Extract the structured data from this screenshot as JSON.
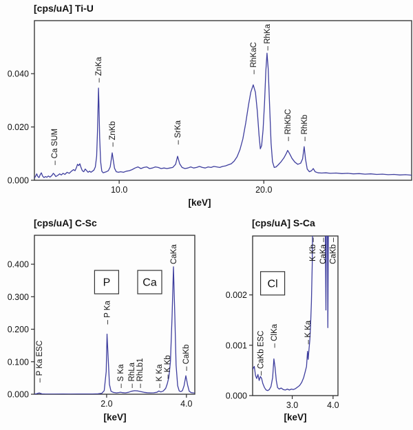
{
  "colors": {
    "curve": "#3e3e9e",
    "axis": "#2b2b2b",
    "text": "#111111",
    "background": "#fdfdfd"
  },
  "chart_data": [
    {
      "id": "ti-u",
      "type": "line",
      "title": "[cps/uA] Ti-U",
      "xlabel": "[keV]",
      "ylabel": "cps/uA",
      "xlim": [
        4.14,
        30.22
      ],
      "ylim": [
        0,
        0.0599
      ],
      "grid": false,
      "x_ticks": [
        {
          "v": 10.0,
          "label": "10.0"
        },
        {
          "v": 20.0,
          "label": "20.0"
        }
      ],
      "y_ticks": [
        {
          "v": 0.0,
          "label": "0.000"
        },
        {
          "v": 0.02,
          "label": "0.020"
        },
        {
          "v": 0.04,
          "label": "0.040"
        }
      ],
      "peaks": [
        {
          "label": "Ca SUM",
          "x": 5.52,
          "y": 0.0057,
          "dash": "below"
        },
        {
          "label": "ZnKa",
          "x": 8.57,
          "y": 0.0367,
          "dash": "below"
        },
        {
          "label": "ZnKb",
          "x": 9.52,
          "y": 0.0126,
          "dash": "below"
        },
        {
          "label": "SrKa",
          "x": 14.04,
          "y": 0.0134,
          "dash": "below"
        },
        {
          "label": "RhKaC",
          "x": 19.27,
          "y": 0.0398,
          "dash": "below"
        },
        {
          "label": "RhKa",
          "x": 20.22,
          "y": 0.0487,
          "dash": "below"
        },
        {
          "label": "RhKbC",
          "x": 21.65,
          "y": 0.0147,
          "dash": "below"
        },
        {
          "label": "RhKb",
          "x": 22.79,
          "y": 0.0147,
          "dash": "below"
        }
      ],
      "boxes": [],
      "curve": [
        [
          4.14,
          0.0008
        ],
        [
          4.22,
          0.0015
        ],
        [
          4.3,
          0.0024
        ],
        [
          4.38,
          0.0014
        ],
        [
          4.46,
          0.001
        ],
        [
          4.55,
          0.0022
        ],
        [
          4.62,
          0.0028
        ],
        [
          4.7,
          0.0016
        ],
        [
          4.8,
          0.001
        ],
        [
          4.9,
          0.0014
        ],
        [
          5.0,
          0.0011
        ],
        [
          5.1,
          0.0016
        ],
        [
          5.22,
          0.0012
        ],
        [
          5.35,
          0.0018
        ],
        [
          5.45,
          0.0026
        ],
        [
          5.52,
          0.0022
        ],
        [
          5.62,
          0.0014
        ],
        [
          5.75,
          0.0018
        ],
        [
          5.88,
          0.0024
        ],
        [
          6.0,
          0.002
        ],
        [
          6.12,
          0.0026
        ],
        [
          6.25,
          0.0022
        ],
        [
          6.4,
          0.003
        ],
        [
          6.55,
          0.0026
        ],
        [
          6.7,
          0.0034
        ],
        [
          6.85,
          0.004
        ],
        [
          6.95,
          0.0036
        ],
        [
          7.05,
          0.0048
        ],
        [
          7.12,
          0.006
        ],
        [
          7.2,
          0.0055
        ],
        [
          7.28,
          0.0062
        ],
        [
          7.35,
          0.005
        ],
        [
          7.45,
          0.0036
        ],
        [
          7.55,
          0.0032
        ],
        [
          7.65,
          0.0042
        ],
        [
          7.75,
          0.0036
        ],
        [
          7.85,
          0.003
        ],
        [
          7.95,
          0.0034
        ],
        [
          8.05,
          0.003
        ],
        [
          8.15,
          0.0034
        ],
        [
          8.25,
          0.0038
        ],
        [
          8.35,
          0.005
        ],
        [
          8.44,
          0.009
        ],
        [
          8.5,
          0.018
        ],
        [
          8.55,
          0.03
        ],
        [
          8.57,
          0.0346
        ],
        [
          8.6,
          0.029
        ],
        [
          8.65,
          0.016
        ],
        [
          8.72,
          0.007
        ],
        [
          8.8,
          0.0034
        ],
        [
          8.9,
          0.0028
        ],
        [
          9.0,
          0.003
        ],
        [
          9.12,
          0.0032
        ],
        [
          9.25,
          0.0036
        ],
        [
          9.38,
          0.005
        ],
        [
          9.46,
          0.008
        ],
        [
          9.52,
          0.0103
        ],
        [
          9.58,
          0.008
        ],
        [
          9.68,
          0.0045
        ],
        [
          9.8,
          0.0032
        ],
        [
          9.95,
          0.003
        ],
        [
          10.1,
          0.0032
        ],
        [
          10.3,
          0.003
        ],
        [
          10.5,
          0.0034
        ],
        [
          10.7,
          0.0036
        ],
        [
          10.9,
          0.004
        ],
        [
          11.1,
          0.0046
        ],
        [
          11.3,
          0.005
        ],
        [
          11.5,
          0.0044
        ],
        [
          11.7,
          0.0048
        ],
        [
          11.9,
          0.005
        ],
        [
          12.1,
          0.0044
        ],
        [
          12.3,
          0.0046
        ],
        [
          12.5,
          0.005
        ],
        [
          12.7,
          0.0048
        ],
        [
          12.9,
          0.0044
        ],
        [
          13.1,
          0.0046
        ],
        [
          13.3,
          0.0044
        ],
        [
          13.5,
          0.0046
        ],
        [
          13.7,
          0.0048
        ],
        [
          13.9,
          0.006
        ],
        [
          14.04,
          0.009
        ],
        [
          14.18,
          0.0062
        ],
        [
          14.35,
          0.0048
        ],
        [
          14.55,
          0.0044
        ],
        [
          14.75,
          0.0046
        ],
        [
          14.95,
          0.005
        ],
        [
          15.15,
          0.0046
        ],
        [
          15.35,
          0.0048
        ],
        [
          15.55,
          0.0052
        ],
        [
          15.75,
          0.0048
        ],
        [
          15.95,
          0.0046
        ],
        [
          16.15,
          0.005
        ],
        [
          16.35,
          0.0048
        ],
        [
          16.55,
          0.0052
        ],
        [
          16.75,
          0.005
        ],
        [
          16.95,
          0.0048
        ],
        [
          17.15,
          0.0052
        ],
        [
          17.35,
          0.0054
        ],
        [
          17.55,
          0.0058
        ],
        [
          17.75,
          0.0062
        ],
        [
          17.95,
          0.0072
        ],
        [
          18.15,
          0.0088
        ],
        [
          18.35,
          0.0115
        ],
        [
          18.55,
          0.0155
        ],
        [
          18.75,
          0.0215
        ],
        [
          18.95,
          0.0285
        ],
        [
          19.1,
          0.033
        ],
        [
          19.27,
          0.0358
        ],
        [
          19.42,
          0.033
        ],
        [
          19.55,
          0.026
        ],
        [
          19.67,
          0.017
        ],
        [
          19.76,
          0.0118
        ],
        [
          19.85,
          0.013
        ],
        [
          19.95,
          0.019
        ],
        [
          20.05,
          0.029
        ],
        [
          20.14,
          0.041
        ],
        [
          20.22,
          0.0477
        ],
        [
          20.3,
          0.042
        ],
        [
          20.4,
          0.028
        ],
        [
          20.5,
          0.014
        ],
        [
          20.6,
          0.007
        ],
        [
          20.72,
          0.0048
        ],
        [
          20.85,
          0.005
        ],
        [
          21.0,
          0.0058
        ],
        [
          21.2,
          0.007
        ],
        [
          21.4,
          0.0085
        ],
        [
          21.55,
          0.01
        ],
        [
          21.65,
          0.0112
        ],
        [
          21.78,
          0.01
        ],
        [
          21.95,
          0.0082
        ],
        [
          22.15,
          0.0068
        ],
        [
          22.35,
          0.006
        ],
        [
          22.55,
          0.0064
        ],
        [
          22.68,
          0.008
        ],
        [
          22.79,
          0.0126
        ],
        [
          22.88,
          0.008
        ],
        [
          23.0,
          0.0042
        ],
        [
          23.15,
          0.0032
        ],
        [
          23.3,
          0.0036
        ],
        [
          23.42,
          0.0044
        ],
        [
          23.55,
          0.0032
        ],
        [
          23.75,
          0.0028
        ],
        [
          24.0,
          0.0027
        ],
        [
          24.3,
          0.0028
        ],
        [
          24.6,
          0.0026
        ],
        [
          25.0,
          0.0027
        ],
        [
          25.4,
          0.0025
        ],
        [
          25.8,
          0.0026
        ],
        [
          26.2,
          0.0024
        ],
        [
          26.6,
          0.0025
        ],
        [
          27.0,
          0.0023
        ],
        [
          27.4,
          0.0024
        ],
        [
          27.8,
          0.0022
        ],
        [
          28.2,
          0.0023
        ],
        [
          28.6,
          0.0021
        ],
        [
          29.0,
          0.0022
        ],
        [
          29.4,
          0.002
        ],
        [
          29.8,
          0.0021
        ],
        [
          30.22,
          0.0019
        ]
      ]
    },
    {
      "id": "c-sc",
      "type": "line",
      "title": "[cps/uA] C-Sc",
      "xlabel": "[keV]",
      "ylabel": "cps/uA",
      "xlim": [
        0.19,
        4.21
      ],
      "ylim": [
        0,
        0.489
      ],
      "grid": false,
      "x_ticks": [
        {
          "v": 2.0,
          "label": "2.0"
        },
        {
          "v": 4.0,
          "label": "4.0"
        }
      ],
      "y_ticks": [
        {
          "v": 0.0,
          "label": "0.000"
        },
        {
          "v": 0.1,
          "label": "0.100"
        },
        {
          "v": 0.2,
          "label": "0.200"
        },
        {
          "v": 0.3,
          "label": "0.300"
        },
        {
          "v": 0.4,
          "label": "0.400"
        }
      ],
      "peaks": [
        {
          "label": "P Ka ESC",
          "x": 0.31,
          "y": 0.036,
          "dash": "below"
        },
        {
          "label": "P Ka",
          "x": 2.01,
          "y": 0.215,
          "dash": "below"
        },
        {
          "label": "S Ka",
          "x": 2.35,
          "y": 0.019,
          "dash": "below"
        },
        {
          "label": "RhLa",
          "x": 2.62,
          "y": 0.019,
          "dash": "below"
        },
        {
          "label": "RhLb1",
          "x": 2.83,
          "y": 0.019,
          "dash": "below"
        },
        {
          "label": "K Ka",
          "x": 3.31,
          "y": 0.019,
          "dash": "below"
        },
        {
          "label": "K Kb",
          "x": 3.52,
          "y": 0.047,
          "dash": "below"
        },
        {
          "label": "CaKa",
          "x": 3.675,
          "y": 0.4,
          "dash": "none"
        },
        {
          "label": "CaKb",
          "x": 3.986,
          "y": 0.072,
          "dash": "below"
        }
      ],
      "boxes": [
        {
          "label": "P",
          "x": 2.0,
          "y": 0.345
        },
        {
          "label": "Ca",
          "x": 3.08,
          "y": 0.345
        }
      ],
      "curve": [
        [
          0.19,
          0.0006
        ],
        [
          0.24,
          0.0012
        ],
        [
          0.28,
          0.003
        ],
        [
          0.31,
          0.004
        ],
        [
          0.34,
          0.0028
        ],
        [
          0.38,
          0.001
        ],
        [
          0.45,
          0.0006
        ],
        [
          0.55,
          0.0005
        ],
        [
          0.7,
          0.0005
        ],
        [
          0.9,
          0.0006
        ],
        [
          1.1,
          0.0005
        ],
        [
          1.3,
          0.0006
        ],
        [
          1.5,
          0.0006
        ],
        [
          1.65,
          0.0008
        ],
        [
          1.78,
          0.0012
        ],
        [
          1.88,
          0.003
        ],
        [
          1.94,
          0.011
        ],
        [
          1.99,
          0.07
        ],
        [
          2.01,
          0.185
        ],
        [
          2.04,
          0.11
        ],
        [
          2.07,
          0.03
        ],
        [
          2.11,
          0.009
        ],
        [
          2.17,
          0.0055
        ],
        [
          2.25,
          0.0042
        ],
        [
          2.31,
          0.0052
        ],
        [
          2.35,
          0.0062
        ],
        [
          2.4,
          0.0048
        ],
        [
          2.47,
          0.0042
        ],
        [
          2.55,
          0.006
        ],
        [
          2.62,
          0.009
        ],
        [
          2.7,
          0.0108
        ],
        [
          2.78,
          0.0102
        ],
        [
          2.86,
          0.008
        ],
        [
          2.94,
          0.0058
        ],
        [
          3.02,
          0.0046
        ],
        [
          3.1,
          0.0042
        ],
        [
          3.18,
          0.0044
        ],
        [
          3.26,
          0.006
        ],
        [
          3.31,
          0.01
        ],
        [
          3.36,
          0.007
        ],
        [
          3.42,
          0.01
        ],
        [
          3.48,
          0.018
        ],
        [
          3.52,
          0.032
        ],
        [
          3.56,
          0.052
        ],
        [
          3.6,
          0.1
        ],
        [
          3.64,
          0.24
        ],
        [
          3.675,
          0.392
        ],
        [
          3.71,
          0.24
        ],
        [
          3.74,
          0.09
        ],
        [
          3.78,
          0.026
        ],
        [
          3.82,
          0.01
        ],
        [
          3.86,
          0.008
        ],
        [
          3.9,
          0.011
        ],
        [
          3.94,
          0.026
        ],
        [
          3.986,
          0.057
        ],
        [
          4.03,
          0.028
        ],
        [
          4.07,
          0.009
        ],
        [
          4.12,
          0.0048
        ],
        [
          4.17,
          0.0042
        ],
        [
          4.21,
          0.004
        ]
      ]
    },
    {
      "id": "s-ca",
      "type": "line",
      "title": "[cps/uA] S-Ca",
      "xlabel": "[keV]",
      "ylabel": "cps/uA",
      "xlim": [
        2.03,
        4.12
      ],
      "ylim": [
        0,
        0.00317
      ],
      "grid": false,
      "x_ticks": [
        {
          "v": 3.0,
          "label": "3.0"
        },
        {
          "v": 4.0,
          "label": "4.0"
        }
      ],
      "y_ticks": [
        {
          "v": 0.0,
          "label": "0.000"
        },
        {
          "v": 0.001,
          "label": "0.001"
        },
        {
          "v": 0.002,
          "label": "0.002"
        }
      ],
      "peaks": [
        {
          "label": "CaKb ESC",
          "x": 2.22,
          "y": 0.0004,
          "dash": "below"
        },
        {
          "label": "ClKa",
          "x": 2.55,
          "y": 0.00095,
          "dash": "below"
        },
        {
          "label": "K Ka",
          "x": 3.375,
          "y": 0.00102,
          "dash": "below"
        },
        {
          "label": "K Kb",
          "x": 3.5,
          "y": null,
          "dash": "above"
        },
        {
          "label": "CaKa",
          "x": 3.75,
          "y": null,
          "dash": "above"
        },
        {
          "label": "CaKb",
          "x": 3.99,
          "y": null,
          "dash": "above"
        }
      ],
      "boxes": [
        {
          "label": "Cl",
          "x": 2.52,
          "y": 0.00223
        }
      ],
      "curve": [
        [
          2.03,
          0.00052
        ],
        [
          2.07,
          0.00058
        ],
        [
          2.1,
          0.0004
        ],
        [
          2.13,
          0.00034
        ],
        [
          2.16,
          0.00042
        ],
        [
          2.19,
          0.0003
        ],
        [
          2.22,
          0.00038
        ],
        [
          2.25,
          0.00034
        ],
        [
          2.28,
          0.00024
        ],
        [
          2.32,
          0.00016
        ],
        [
          2.36,
          0.00011
        ],
        [
          2.4,
          0.0001
        ],
        [
          2.44,
          0.00012
        ],
        [
          2.48,
          0.00018
        ],
        [
          2.52,
          0.00036
        ],
        [
          2.55,
          0.00073
        ],
        [
          2.58,
          0.00056
        ],
        [
          2.61,
          0.0003
        ],
        [
          2.64,
          0.00016
        ],
        [
          2.68,
          0.00013
        ],
        [
          2.73,
          0.00015
        ],
        [
          2.78,
          0.00012
        ],
        [
          2.83,
          0.00011
        ],
        [
          2.88,
          0.00013
        ],
        [
          2.93,
          0.00011
        ],
        [
          2.98,
          0.00013
        ],
        [
          3.03,
          0.00012
        ],
        [
          3.08,
          0.00014
        ],
        [
          3.13,
          0.00017
        ],
        [
          3.18,
          0.0002
        ],
        [
          3.23,
          0.00026
        ],
        [
          3.28,
          0.00036
        ],
        [
          3.32,
          0.00048
        ],
        [
          3.35,
          0.00058
        ],
        [
          3.375,
          0.00088
        ],
        [
          3.39,
          0.00072
        ],
        [
          3.41,
          0.00092
        ],
        [
          3.43,
          0.0011
        ],
        [
          3.45,
          0.0014
        ],
        [
          3.47,
          0.00185
        ],
        [
          3.49,
          0.0026
        ],
        [
          3.51,
          0.0042
        ],
        [
          3.8,
          0.0042
        ],
        [
          3.825,
          0.0017
        ],
        [
          3.84,
          0.0042
        ],
        [
          3.857,
          0.0042
        ],
        [
          3.872,
          0.00135
        ],
        [
          3.89,
          0.0042
        ],
        [
          4.12,
          0.0042
        ]
      ]
    }
  ]
}
